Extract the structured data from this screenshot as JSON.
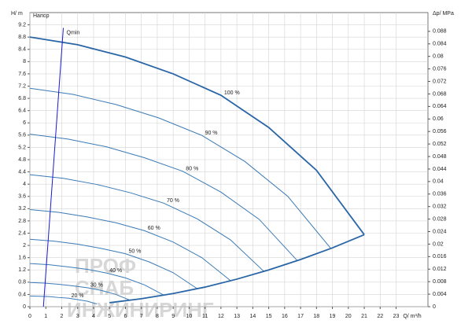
{
  "chart_data": {
    "type": "line",
    "title": "Напор",
    "y_label": "H/ m",
    "y2_label": "Δp/ MPa",
    "x_label": "Q/ m³/h",
    "xlim": [
      0,
      25
    ],
    "xticks": [
      0,
      1,
      2,
      3,
      4,
      5,
      6,
      7,
      8,
      9,
      10,
      11,
      12,
      13,
      14,
      15,
      16,
      17,
      18,
      19,
      20,
      21,
      22,
      23
    ],
    "ylim": [
      0,
      9.6
    ],
    "yticks": [
      0,
      0.4,
      0.8,
      1.2,
      1.6,
      2,
      2.4,
      2.8,
      3.2,
      3.6,
      4,
      4.4,
      4.8,
      5.2,
      5.6,
      6,
      6.4,
      6.8,
      7.2,
      7.6,
      8,
      8.4,
      8.8,
      9.2
    ],
    "y2lim": [
      0,
      0.094
    ],
    "y2ticks": [
      0,
      0.004,
      0.008,
      0.012,
      0.016,
      0.02,
      0.024,
      0.028,
      0.032,
      0.036,
      0.04,
      0.044,
      0.048,
      0.052,
      0.056,
      0.06,
      0.064,
      0.068,
      0.072,
      0.076,
      0.08,
      0.084,
      0.088
    ],
    "grid": true,
    "series": [
      {
        "name": "100 %",
        "color": "#2a66a6",
        "x": [
          0,
          3,
          6,
          9,
          12,
          15,
          18,
          21
        ],
        "values": [
          8.8,
          8.55,
          8.15,
          7.6,
          6.9,
          5.85,
          4.45,
          2.35
        ]
      },
      {
        "name": "90 %",
        "color": "#3b7ab5",
        "x": [
          0,
          2.7,
          5.4,
          8.1,
          10.8,
          13.5,
          16.2,
          18.9
        ],
        "values": [
          7.13,
          6.93,
          6.6,
          6.16,
          5.59,
          4.74,
          3.6,
          1.9
        ]
      },
      {
        "name": "80 %",
        "color": "#3b7ab5",
        "x": [
          0,
          2.4,
          4.8,
          7.2,
          9.6,
          12,
          14.4,
          16.8
        ],
        "values": [
          5.63,
          5.47,
          5.22,
          4.86,
          4.42,
          3.74,
          2.85,
          1.5
        ]
      },
      {
        "name": "70 %",
        "color": "#3b7ab5",
        "x": [
          0,
          2.1,
          4.2,
          6.3,
          8.4,
          10.5,
          12.6,
          14.7
        ],
        "values": [
          4.31,
          4.19,
          3.99,
          3.72,
          3.38,
          2.87,
          2.18,
          1.15
        ]
      },
      {
        "name": "60 %",
        "color": "#3b7ab5",
        "x": [
          0,
          1.8,
          3.6,
          5.4,
          7.2,
          9,
          10.8,
          12.6
        ],
        "values": [
          3.17,
          3.08,
          2.93,
          2.74,
          2.48,
          2.11,
          1.6,
          0.85
        ]
      },
      {
        "name": "50 %",
        "color": "#3b7ab5",
        "x": [
          0,
          1.5,
          3,
          4.5,
          6,
          7.5,
          9,
          10.5
        ],
        "values": [
          2.2,
          2.14,
          2.04,
          1.9,
          1.73,
          1.46,
          1.11,
          0.59
        ]
      },
      {
        "name": "40 %",
        "color": "#3b7ab5",
        "x": [
          0,
          1.2,
          2.4,
          3.6,
          4.8,
          6,
          7.2,
          8.4
        ],
        "values": [
          1.41,
          1.37,
          1.3,
          1.22,
          1.1,
          0.94,
          0.71,
          0.38
        ]
      },
      {
        "name": "30 %",
        "color": "#3b7ab5",
        "x": [
          0,
          0.9,
          1.8,
          2.7,
          3.6,
          4.5,
          5.4,
          6.3
        ],
        "values": [
          0.79,
          0.77,
          0.73,
          0.68,
          0.62,
          0.53,
          0.4,
          0.21
        ]
      },
      {
        "name": "20 %",
        "color": "#3b7ab5",
        "x": [
          0,
          0.6,
          1.2,
          1.8,
          2.4,
          3,
          3.6,
          4.2
        ],
        "values": [
          0.35,
          0.34,
          0.33,
          0.3,
          0.28,
          0.23,
          0.18,
          0.09
        ]
      },
      {
        "color": "#2a66a6",
        "x": [
          5,
          7,
          9,
          11,
          13,
          15,
          17,
          19,
          21
        ],
        "values": [
          0.13,
          0.26,
          0.43,
          0.64,
          0.9,
          1.2,
          1.54,
          1.92,
          2.35
        ]
      },
      {
        "name": "Qmin",
        "color": "#1a1ad0",
        "x": [
          0.85,
          2.1
        ],
        "values": [
          0,
          9.1
        ]
      }
    ],
    "watermark": [
      "ПРОФ",
      "СНАБ",
      "ИНЖИНИРИНГ"
    ]
  }
}
